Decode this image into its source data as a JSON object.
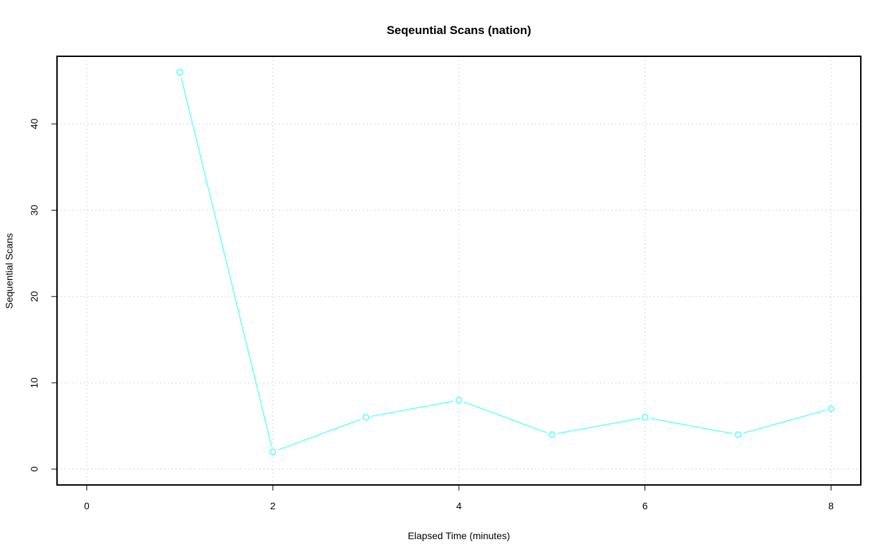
{
  "chart_data": {
    "type": "line",
    "title": "Seqeuntial Scans (nation)",
    "xlabel": "Elapsed Time (minutes)",
    "ylabel": "Sequential Scans",
    "x": [
      1,
      2,
      3,
      4,
      5,
      6,
      7,
      8
    ],
    "values": [
      46,
      2,
      6,
      8,
      4,
      6,
      4,
      7
    ],
    "xlim": [
      0,
      8
    ],
    "ylim": [
      0,
      46
    ],
    "xticks": [
      0,
      2,
      4,
      6,
      8
    ],
    "yticks": [
      0,
      10,
      20,
      30,
      40
    ],
    "grid": true,
    "markers": "open-circle",
    "color": "#66ffff"
  }
}
